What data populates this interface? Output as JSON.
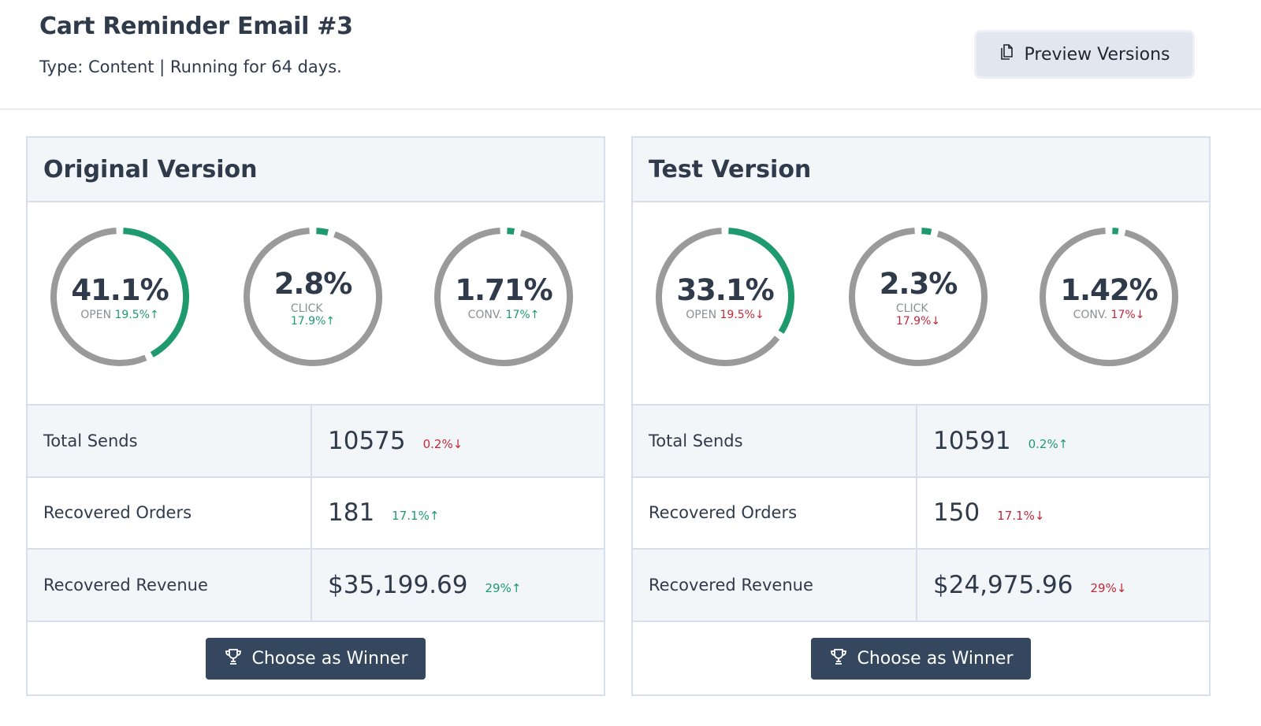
{
  "header": {
    "title": "Cart Reminder Email #3",
    "subtitle": "Type: Content | Running for 64 days.",
    "preview_label": "Preview Versions"
  },
  "colors": {
    "up": "#1f9a6f",
    "down": "#c0283a",
    "ring_track": "#9a9a9a",
    "button": "#34475f"
  },
  "versions": [
    {
      "title": "Original Version",
      "rings": [
        {
          "value": "41.1%",
          "pct": 41.1,
          "label": "OPEN",
          "delta": "19.5%↑",
          "dir": "up",
          "wrap": false
        },
        {
          "value": "2.8%",
          "pct": 2.8,
          "label": "CLICK",
          "delta": "17.9%↑",
          "dir": "up",
          "wrap": true
        },
        {
          "value": "1.71%",
          "pct": 1.71,
          "label": "CONV.",
          "delta": "17%↑",
          "dir": "up",
          "wrap": false
        }
      ],
      "rows": [
        {
          "label": "Total Sends",
          "value": "10575",
          "delta": "0.2%↓",
          "dir": "down"
        },
        {
          "label": "Recovered Orders",
          "value": "181",
          "delta": "17.1%↑",
          "dir": "up"
        },
        {
          "label": "Recovered Revenue",
          "value": "$35,199.69",
          "delta": "29%↑",
          "dir": "up"
        }
      ],
      "button": "Choose as Winner"
    },
    {
      "title": "Test Version",
      "rings": [
        {
          "value": "33.1%",
          "pct": 33.1,
          "label": "OPEN",
          "delta": "19.5%↓",
          "dir": "down",
          "wrap": false
        },
        {
          "value": "2.3%",
          "pct": 2.3,
          "label": "CLICK",
          "delta": "17.9%↓",
          "dir": "down",
          "wrap": true
        },
        {
          "value": "1.42%",
          "pct": 1.42,
          "label": "CONV.",
          "delta": "17%↓",
          "dir": "down",
          "wrap": false
        }
      ],
      "rows": [
        {
          "label": "Total Sends",
          "value": "10591",
          "delta": "0.2%↑",
          "dir": "up"
        },
        {
          "label": "Recovered Orders",
          "value": "150",
          "delta": "17.1%↓",
          "dir": "down"
        },
        {
          "label": "Recovered Revenue",
          "value": "$24,975.96",
          "delta": "29%↓",
          "dir": "down"
        }
      ],
      "button": "Choose as Winner"
    }
  ]
}
